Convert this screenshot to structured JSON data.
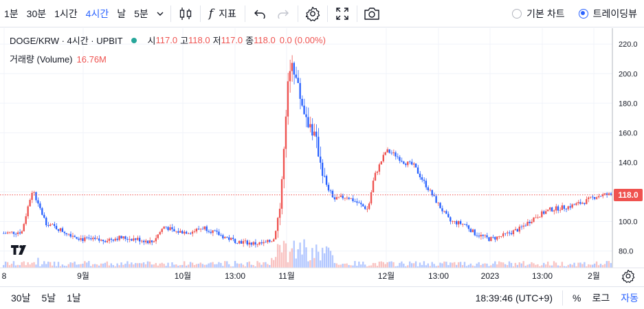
{
  "toolbar": {
    "intervals": [
      "1분",
      "30분",
      "1시간",
      "4시간",
      "날",
      "5분"
    ],
    "active_interval": "4시간",
    "indicators_label": "지표",
    "fx_label": "f",
    "chart_type_basic": "기본 차트",
    "chart_type_tv": "트레이딩뷰",
    "selected_chart_type": "트레이딩뷰"
  },
  "legend": {
    "symbol": "DOGE/KRW · 4시간 · UPBIT",
    "open_label": "시",
    "open": "117.0",
    "high_label": "고",
    "high": "118.0",
    "low_label": "저",
    "low": "117.0",
    "close_label": "종",
    "close": "118.0",
    "change": "0.0 (0.00%)"
  },
  "volume_legend": {
    "label": "거래량 (Volume)",
    "value": "16.76M"
  },
  "price_badge": "118.0",
  "bottom": {
    "ranges": [
      "30날",
      "5날",
      "1날"
    ],
    "time": "18:39:46 (UTC+9)",
    "percent": "%",
    "log": "로그",
    "auto": "자동"
  },
  "colors": {
    "up": "#ef5350",
    "down": "#2962ff",
    "grid": "#f0f3fa",
    "accent": "#2962ff"
  },
  "chart_data": {
    "type": "candlestick",
    "y_ticks": [
      80.0,
      100.0,
      120.0,
      140.0,
      160.0,
      180.0,
      200.0,
      220.0
    ],
    "y_tick_labels": [
      "80.0",
      "100.0",
      "120.0",
      "140.0",
      "160.0",
      "180.0",
      "200.0",
      "220.0"
    ],
    "ylim": [
      70,
      228
    ],
    "last_price": 118.0,
    "x_tick_labels": [
      "8",
      "9월",
      "10월",
      "13:00",
      "11월",
      "12월",
      "13:00",
      "2023",
      "13:00",
      "2월"
    ],
    "grid": true,
    "price_path": [
      [
        0,
        92
      ],
      [
        0.03,
        93
      ],
      [
        0.045,
        118
      ],
      [
        0.05,
        120
      ],
      [
        0.055,
        113
      ],
      [
        0.07,
        99
      ],
      [
        0.1,
        93
      ],
      [
        0.13,
        88
      ],
      [
        0.16,
        87
      ],
      [
        0.19,
        89
      ],
      [
        0.22,
        88
      ],
      [
        0.245,
        86
      ],
      [
        0.265,
        97
      ],
      [
        0.28,
        93
      ],
      [
        0.31,
        93
      ],
      [
        0.33,
        96
      ],
      [
        0.36,
        90
      ],
      [
        0.38,
        87
      ],
      [
        0.41,
        85
      ],
      [
        0.43,
        85
      ],
      [
        0.445,
        88
      ],
      [
        0.455,
        110
      ],
      [
        0.462,
        150
      ],
      [
        0.468,
        190
      ],
      [
        0.475,
        210
      ],
      [
        0.485,
        190
      ],
      [
        0.495,
        175
      ],
      [
        0.51,
        160
      ],
      [
        0.52,
        145
      ],
      [
        0.53,
        125
      ],
      [
        0.545,
        115
      ],
      [
        0.565,
        117
      ],
      [
        0.585,
        112
      ],
      [
        0.6,
        108
      ],
      [
        0.61,
        130
      ],
      [
        0.63,
        148
      ],
      [
        0.645,
        145
      ],
      [
        0.66,
        140
      ],
      [
        0.675,
        138
      ],
      [
        0.69,
        128
      ],
      [
        0.715,
        112
      ],
      [
        0.735,
        100
      ],
      [
        0.76,
        98
      ],
      [
        0.775,
        92
      ],
      [
        0.8,
        88
      ],
      [
        0.82,
        90
      ],
      [
        0.85,
        95
      ],
      [
        0.875,
        103
      ],
      [
        0.9,
        108
      ],
      [
        0.93,
        110
      ],
      [
        0.955,
        113
      ],
      [
        0.975,
        117
      ],
      [
        0.99,
        118
      ]
    ]
  }
}
